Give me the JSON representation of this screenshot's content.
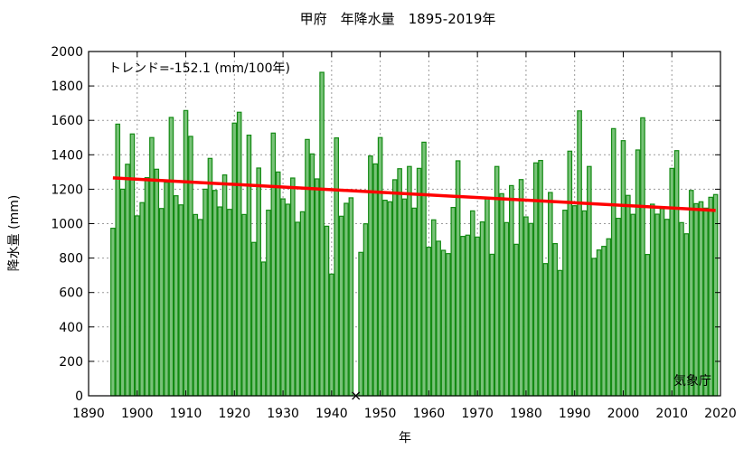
{
  "chart_data": {
    "type": "bar",
    "title": "甲府　年降水量　1895-2019年",
    "xlabel": "年",
    "ylabel": "降水量 (mm)",
    "xlim": [
      1890,
      2020
    ],
    "ylim": [
      0,
      2000
    ],
    "xticks": [
      "1890",
      "1900",
      "1910",
      "1920",
      "1930",
      "1940",
      "1950",
      "1960",
      "1970",
      "1980",
      "1990",
      "2000",
      "2010",
      "2020"
    ],
    "yticks": [
      "0",
      "200",
      "400",
      "600",
      "800",
      "1000",
      "1200",
      "1400",
      "1600",
      "1800",
      "2000"
    ],
    "grid": true,
    "annotation": "トレンド=-152.1 (mm/100年)",
    "source": "気象庁",
    "missing_marker": {
      "year": 1945,
      "symbol": "×"
    },
    "trend": {
      "slope_per_100yr": -152.1,
      "start": [
        1895,
        1266
      ],
      "end": [
        2019,
        1077
      ]
    },
    "colors": {
      "bar_fill": "#78c278",
      "bar_stroke": "#138a13",
      "trend": "#ff0000",
      "grid": "#9a9a9a"
    },
    "start_year": 1895,
    "values": [
      973,
      1578,
      1200,
      1345,
      1521,
      1045,
      1122,
      1267,
      1500,
      1316,
      1088,
      1240,
      1617,
      1162,
      1109,
      1657,
      1507,
      1053,
      1024,
      1200,
      1379,
      1193,
      1097,
      1283,
      1083,
      1584,
      1647,
      1053,
      1514,
      891,
      1323,
      777,
      1078,
      1526,
      1300,
      1144,
      1113,
      1265,
      1008,
      1069,
      1489,
      1405,
      1260,
      1879,
      985,
      707,
      1498,
      1043,
      1118,
      1150,
      null,
      833,
      999,
      1393,
      1347,
      1500,
      1136,
      1127,
      1255,
      1319,
      1143,
      1332,
      1090,
      1321,
      1473,
      863,
      1022,
      898,
      845,
      826,
      1094,
      1365,
      926,
      933,
      1074,
      922,
      1010,
      1153,
      822,
      1332,
      1174,
      1006,
      1221,
      880,
      1256,
      1039,
      1001,
      1353,
      1367,
      768,
      1181,
      884,
      728,
      1078,
      1421,
      1104,
      1655,
      1074,
      1332,
      798,
      847,
      868,
      912,
      1552,
      1031,
      1482,
      1164,
      1054,
      1428,
      1615,
      821,
      1113,
      1055,
      1087,
      1025,
      1321,
      1424,
      1006,
      941,
      1193,
      1116,
      1127,
      1090,
      1153,
      1169
    ]
  }
}
